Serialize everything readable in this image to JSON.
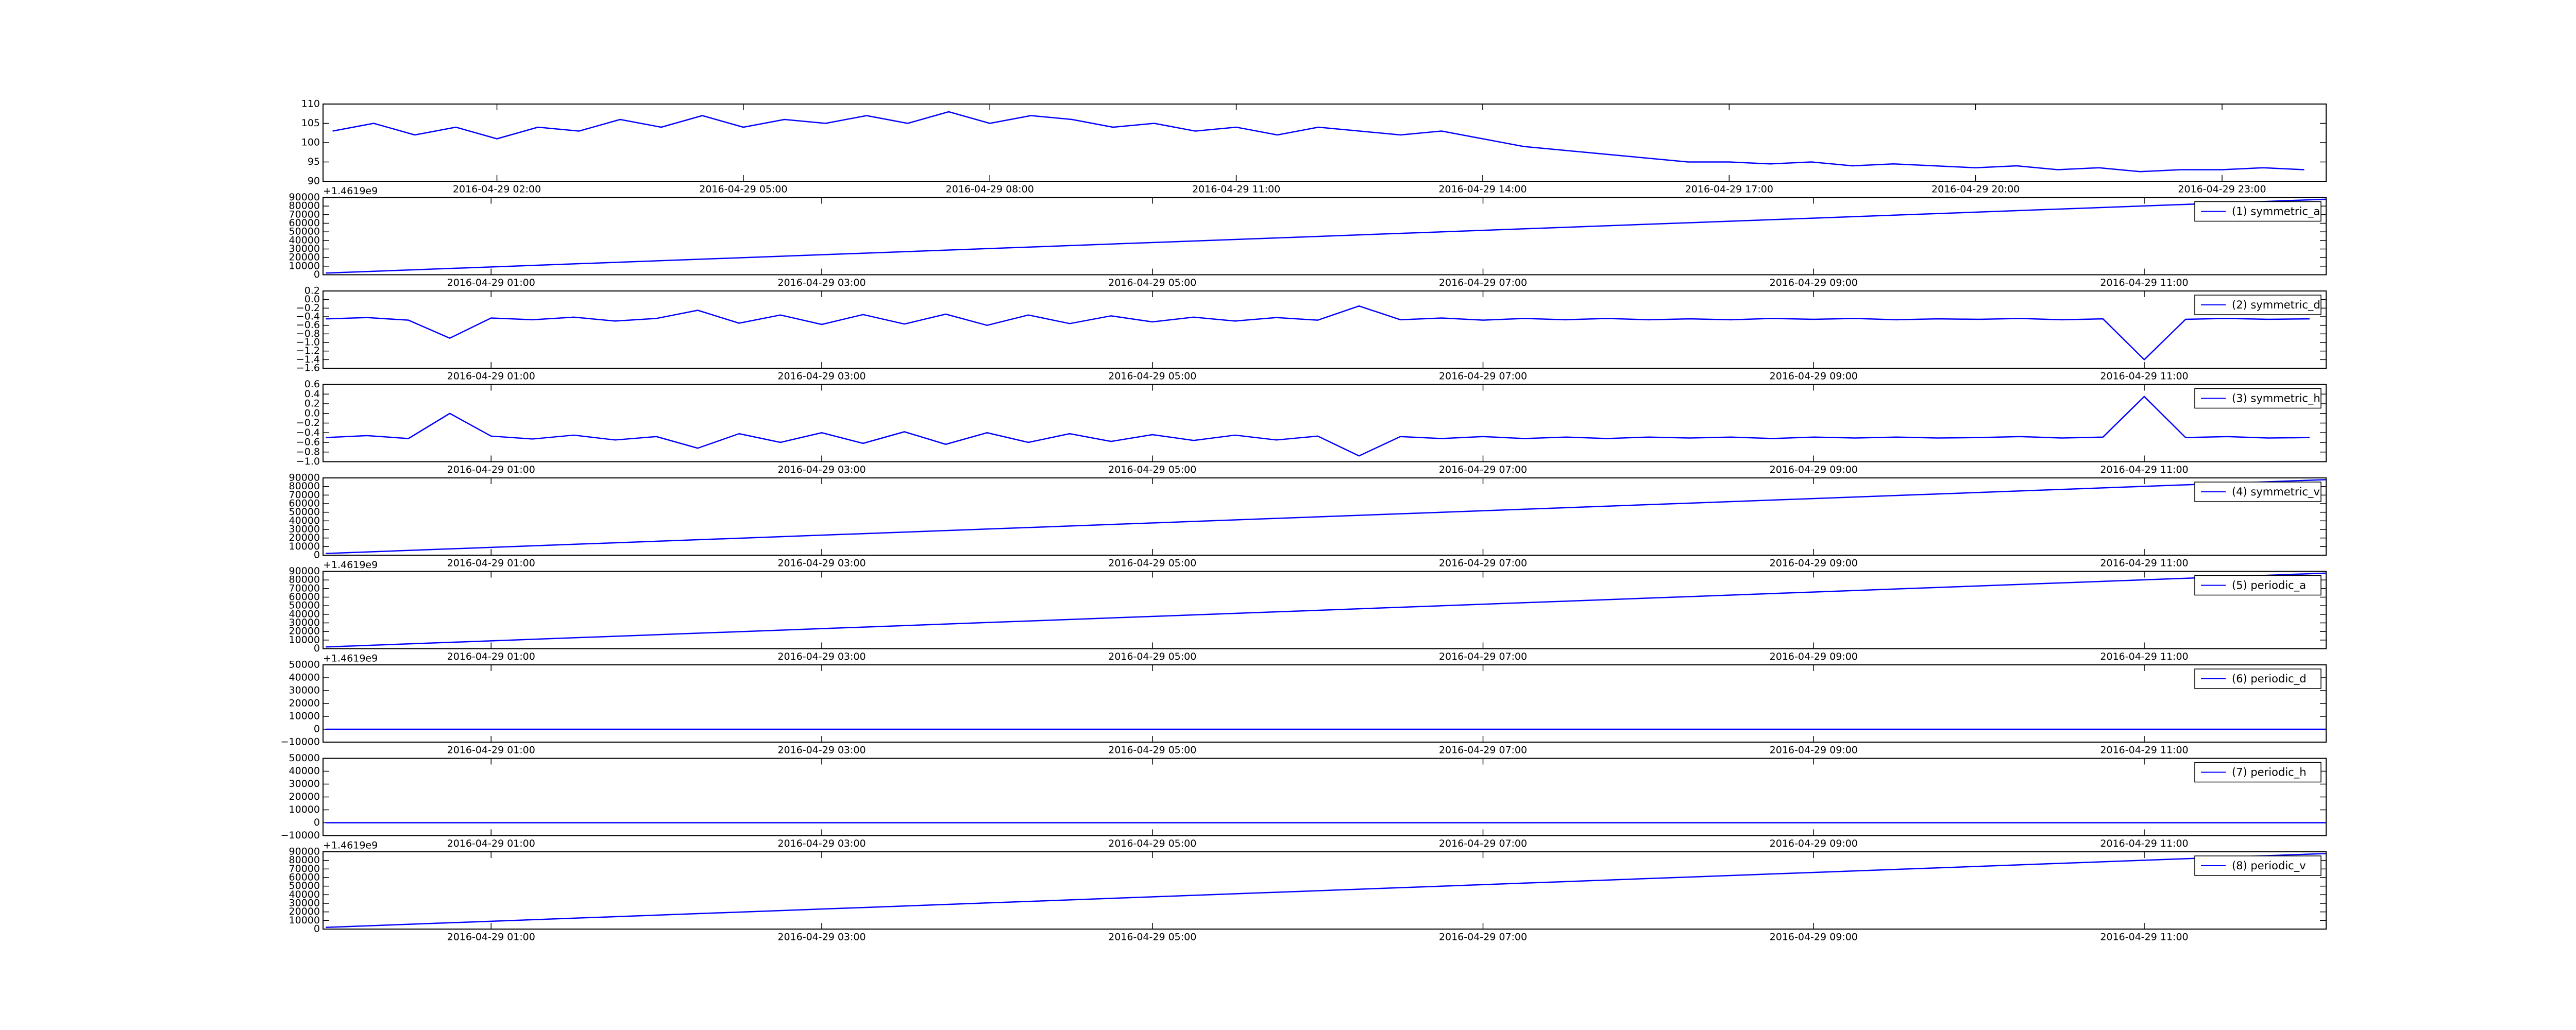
{
  "chart_data": [
    {
      "type": "line",
      "x": [
        "2016-04-29 00:00",
        "2016-04-29 00:30",
        "2016-04-29 01:00",
        "2016-04-29 01:30",
        "2016-04-29 02:00",
        "2016-04-29 02:30",
        "2016-04-29 03:00",
        "2016-04-29 03:30",
        "2016-04-29 04:00",
        "2016-04-29 04:30",
        "2016-04-29 05:00",
        "2016-04-29 05:30",
        "2016-04-29 06:00",
        "2016-04-29 06:30",
        "2016-04-29 07:00",
        "2016-04-29 07:30",
        "2016-04-29 08:00",
        "2016-04-29 08:30",
        "2016-04-29 09:00",
        "2016-04-29 09:30",
        "2016-04-29 10:00",
        "2016-04-29 10:30",
        "2016-04-29 11:00",
        "2016-04-29 11:30",
        "2016-04-29 12:00",
        "2016-04-29 12:30",
        "2016-04-29 13:00",
        "2016-04-29 13:30",
        "2016-04-29 14:00",
        "2016-04-29 14:30",
        "2016-04-29 15:00",
        "2016-04-29 15:30",
        "2016-04-29 16:00",
        "2016-04-29 16:30",
        "2016-04-29 17:00",
        "2016-04-29 17:30",
        "2016-04-29 18:00",
        "2016-04-29 18:30",
        "2016-04-29 19:00",
        "2016-04-29 19:30",
        "2016-04-29 20:00",
        "2016-04-29 20:30",
        "2016-04-29 21:00",
        "2016-04-29 21:30",
        "2016-04-29 22:00",
        "2016-04-29 22:30",
        "2016-04-29 23:00",
        "2016-04-29 23:30",
        "2016-04-30 00:00"
      ],
      "series": [
        {
          "color": "#0000ff",
          "values": [
            103,
            105,
            102,
            104,
            101,
            104,
            103,
            106,
            104,
            107,
            104,
            106,
            105,
            107,
            105,
            108,
            105,
            107,
            106,
            104,
            105,
            103,
            104,
            102,
            104,
            103,
            102,
            103,
            101,
            99,
            98,
            97,
            96,
            95,
            95,
            94.5,
            95,
            94,
            94.5,
            94,
            93.5,
            94,
            93,
            93.5,
            92.5,
            93,
            93,
            93.5,
            93
          ]
        }
      ],
      "xlim": [
        "2016-04-28 23:53",
        "2016-04-30 00:16"
      ],
      "xticks": [
        "2016-04-29 02:00",
        "2016-04-29 05:00",
        "2016-04-29 08:00",
        "2016-04-29 11:00",
        "2016-04-29 14:00",
        "2016-04-29 17:00",
        "2016-04-29 20:00",
        "2016-04-29 23:00"
      ],
      "ylim": [
        90,
        110
      ],
      "yticks": [
        90,
        95,
        100,
        105,
        110
      ]
    },
    {
      "type": "line",
      "offset_text": "+1.4619e9",
      "legend": "upper right",
      "x": [
        "2016-04-29 00:00",
        "2016-04-29 12:06"
      ],
      "series": [
        {
          "name": "(1) symmetric_a",
          "color": "#0000ff",
          "values": [
            2000,
            88000
          ]
        }
      ],
      "xlim": [
        "2016-04-28 23:59",
        "2016-04-29 12:06"
      ],
      "xticks": [
        "2016-04-29 01:00",
        "2016-04-29 03:00",
        "2016-04-29 05:00",
        "2016-04-29 07:00",
        "2016-04-29 09:00",
        "2016-04-29 11:00"
      ],
      "ylim": [
        0,
        90000
      ],
      "yticks": [
        0,
        10000,
        20000,
        30000,
        40000,
        50000,
        60000,
        70000,
        80000,
        90000
      ]
    },
    {
      "type": "line",
      "legend": "upper right",
      "x": [
        "2016-04-29 00:00",
        "2016-04-29 00:15",
        "2016-04-29 00:30",
        "2016-04-29 00:45",
        "2016-04-29 01:00",
        "2016-04-29 01:15",
        "2016-04-29 01:30",
        "2016-04-29 01:45",
        "2016-04-29 02:00",
        "2016-04-29 02:15",
        "2016-04-29 02:30",
        "2016-04-29 02:45",
        "2016-04-29 03:00",
        "2016-04-29 03:15",
        "2016-04-29 03:30",
        "2016-04-29 03:45",
        "2016-04-29 04:00",
        "2016-04-29 04:15",
        "2016-04-29 04:30",
        "2016-04-29 04:45",
        "2016-04-29 05:00",
        "2016-04-29 05:15",
        "2016-04-29 05:30",
        "2016-04-29 05:45",
        "2016-04-29 06:00",
        "2016-04-29 06:15",
        "2016-04-29 06:30",
        "2016-04-29 06:45",
        "2016-04-29 07:00",
        "2016-04-29 07:15",
        "2016-04-29 07:30",
        "2016-04-29 07:45",
        "2016-04-29 08:00",
        "2016-04-29 08:15",
        "2016-04-29 08:30",
        "2016-04-29 08:45",
        "2016-04-29 09:00",
        "2016-04-29 09:15",
        "2016-04-29 09:30",
        "2016-04-29 09:45",
        "2016-04-29 10:00",
        "2016-04-29 10:15",
        "2016-04-29 10:30",
        "2016-04-29 10:45",
        "2016-04-29 11:00",
        "2016-04-29 11:15",
        "2016-04-29 11:30",
        "2016-04-29 11:45",
        "2016-04-29 12:00"
      ],
      "series": [
        {
          "name": "(2) symmetric_d",
          "color": "#0000ff",
          "values": [
            -0.45,
            -0.42,
            -0.48,
            -0.9,
            -0.43,
            -0.47,
            -0.41,
            -0.5,
            -0.44,
            -0.25,
            -0.55,
            -0.36,
            -0.58,
            -0.35,
            -0.57,
            -0.34,
            -0.6,
            -0.36,
            -0.56,
            -0.38,
            -0.52,
            -0.41,
            -0.5,
            -0.42,
            -0.48,
            -0.15,
            -0.47,
            -0.43,
            -0.48,
            -0.44,
            -0.47,
            -0.44,
            -0.47,
            -0.45,
            -0.47,
            -0.44,
            -0.46,
            -0.44,
            -0.47,
            -0.45,
            -0.46,
            -0.44,
            -0.47,
            -0.45,
            -1.4,
            -0.46,
            -0.44,
            -0.46,
            -0.45
          ]
        }
      ],
      "xlim": [
        "2016-04-28 23:59",
        "2016-04-29 12:06"
      ],
      "xticks": [
        "2016-04-29 01:00",
        "2016-04-29 03:00",
        "2016-04-29 05:00",
        "2016-04-29 07:00",
        "2016-04-29 09:00",
        "2016-04-29 11:00"
      ],
      "ylim": [
        -1.6,
        0.2
      ],
      "yticks": [
        {
          "value": -1.6,
          "label": "−1.6"
        },
        {
          "value": -1.4,
          "label": "−1.4"
        },
        {
          "value": -1.2,
          "label": "−1.2"
        },
        {
          "value": -1.0,
          "label": "−1.0"
        },
        {
          "value": -0.8,
          "label": "−0.8"
        },
        {
          "value": -0.6,
          "label": "−0.6"
        },
        {
          "value": -0.4,
          "label": "−0.4"
        },
        {
          "value": -0.2,
          "label": "−0.2"
        },
        {
          "value": 0,
          "label": "0.0"
        },
        0.2
      ]
    },
    {
      "type": "line",
      "legend": "upper right",
      "x": [
        "2016-04-29 00:00",
        "2016-04-29 00:15",
        "2016-04-29 00:30",
        "2016-04-29 00:45",
        "2016-04-29 01:00",
        "2016-04-29 01:15",
        "2016-04-29 01:30",
        "2016-04-29 01:45",
        "2016-04-29 02:00",
        "2016-04-29 02:15",
        "2016-04-29 02:30",
        "2016-04-29 02:45",
        "2016-04-29 03:00",
        "2016-04-29 03:15",
        "2016-04-29 03:30",
        "2016-04-29 03:45",
        "2016-04-29 04:00",
        "2016-04-29 04:15",
        "2016-04-29 04:30",
        "2016-04-29 04:45",
        "2016-04-29 05:00",
        "2016-04-29 05:15",
        "2016-04-29 05:30",
        "2016-04-29 05:45",
        "2016-04-29 06:00",
        "2016-04-29 06:15",
        "2016-04-29 06:30",
        "2016-04-29 06:45",
        "2016-04-29 07:00",
        "2016-04-29 07:15",
        "2016-04-29 07:30",
        "2016-04-29 07:45",
        "2016-04-29 08:00",
        "2016-04-29 08:15",
        "2016-04-29 08:30",
        "2016-04-29 08:45",
        "2016-04-29 09:00",
        "2016-04-29 09:15",
        "2016-04-29 09:30",
        "2016-04-29 09:45",
        "2016-04-29 10:00",
        "2016-04-29 10:15",
        "2016-04-29 10:30",
        "2016-04-29 10:45",
        "2016-04-29 11:00",
        "2016-04-29 11:15",
        "2016-04-29 11:30",
        "2016-04-29 11:45",
        "2016-04-29 12:00"
      ],
      "series": [
        {
          "name": "(3) symmetric_h",
          "color": "#0000ff",
          "values": [
            -0.5,
            -0.46,
            -0.52,
            0.0,
            -0.47,
            -0.53,
            -0.45,
            -0.55,
            -0.48,
            -0.72,
            -0.42,
            -0.6,
            -0.4,
            -0.62,
            -0.38,
            -0.64,
            -0.4,
            -0.6,
            -0.42,
            -0.58,
            -0.44,
            -0.56,
            -0.45,
            -0.55,
            -0.47,
            -0.88,
            -0.48,
            -0.52,
            -0.48,
            -0.52,
            -0.49,
            -0.52,
            -0.49,
            -0.51,
            -0.49,
            -0.52,
            -0.49,
            -0.51,
            -0.49,
            -0.51,
            -0.5,
            -0.48,
            -0.51,
            -0.49,
            0.35,
            -0.5,
            -0.48,
            -0.51,
            -0.5
          ]
        }
      ],
      "xlim": [
        "2016-04-28 23:59",
        "2016-04-29 12:06"
      ],
      "xticks": [
        "2016-04-29 01:00",
        "2016-04-29 03:00",
        "2016-04-29 05:00",
        "2016-04-29 07:00",
        "2016-04-29 09:00",
        "2016-04-29 11:00"
      ],
      "ylim": [
        -1.0,
        0.6
      ],
      "yticks": [
        {
          "value": -1.0,
          "label": "−1.0"
        },
        {
          "value": -0.8,
          "label": "−0.8"
        },
        {
          "value": -0.6,
          "label": "−0.6"
        },
        {
          "value": -0.4,
          "label": "−0.4"
        },
        {
          "value": -0.2,
          "label": "−0.2"
        },
        {
          "value": 0,
          "label": "0.0"
        },
        0.2,
        0.4,
        0.6
      ]
    },
    {
      "type": "line",
      "legend": "upper right",
      "x": [
        "2016-04-29 00:00",
        "2016-04-29 12:06"
      ],
      "series": [
        {
          "name": "(4) symmetric_v",
          "color": "#0000ff",
          "values": [
            2000,
            88000
          ]
        }
      ],
      "xlim": [
        "2016-04-28 23:59",
        "2016-04-29 12:06"
      ],
      "xticks": [
        "2016-04-29 01:00",
        "2016-04-29 03:00",
        "2016-04-29 05:00",
        "2016-04-29 07:00",
        "2016-04-29 09:00",
        "2016-04-29 11:00"
      ],
      "ylim": [
        0,
        90000
      ],
      "yticks": [
        0,
        10000,
        20000,
        30000,
        40000,
        50000,
        60000,
        70000,
        80000,
        90000
      ]
    },
    {
      "type": "line",
      "offset_text": "+1.4619e9",
      "legend": "upper right",
      "x": [
        "2016-04-29 00:00",
        "2016-04-29 12:06"
      ],
      "series": [
        {
          "name": "(5) periodic_a",
          "color": "#0000ff",
          "values": [
            2000,
            88000
          ]
        }
      ],
      "xlim": [
        "2016-04-28 23:59",
        "2016-04-29 12:06"
      ],
      "xticks": [
        "2016-04-29 01:00",
        "2016-04-29 03:00",
        "2016-04-29 05:00",
        "2016-04-29 07:00",
        "2016-04-29 09:00",
        "2016-04-29 11:00"
      ],
      "ylim": [
        0,
        90000
      ],
      "yticks": [
        0,
        10000,
        20000,
        30000,
        40000,
        50000,
        60000,
        70000,
        80000,
        90000
      ]
    },
    {
      "type": "line",
      "offset_text": "+1.4619e9",
      "legend": "upper right",
      "x": [
        "2016-04-29 00:00",
        "2016-04-29 12:06"
      ],
      "series": [
        {
          "name": "(6) periodic_d",
          "color": "#0000ff",
          "values": [
            0,
            0
          ]
        }
      ],
      "xlim": [
        "2016-04-28 23:59",
        "2016-04-29 12:06"
      ],
      "xticks": [
        "2016-04-29 01:00",
        "2016-04-29 03:00",
        "2016-04-29 05:00",
        "2016-04-29 07:00",
        "2016-04-29 09:00",
        "2016-04-29 11:00"
      ],
      "ylim": [
        -10000,
        50000
      ],
      "yticks": [
        {
          "value": -10000,
          "label": "−10000"
        },
        0,
        10000,
        20000,
        30000,
        40000,
        50000
      ]
    },
    {
      "type": "line",
      "legend": "upper right",
      "x": [
        "2016-04-29 00:00",
        "2016-04-29 12:06"
      ],
      "series": [
        {
          "name": "(7) periodic_h",
          "color": "#0000ff",
          "values": [
            0,
            0
          ]
        }
      ],
      "xlim": [
        "2016-04-28 23:59",
        "2016-04-29 12:06"
      ],
      "xticks": [
        "2016-04-29 01:00",
        "2016-04-29 03:00",
        "2016-04-29 05:00",
        "2016-04-29 07:00",
        "2016-04-29 09:00",
        "2016-04-29 11:00"
      ],
      "ylim": [
        -10000,
        50000
      ],
      "yticks": [
        {
          "value": -10000,
          "label": "−10000"
        },
        0,
        10000,
        20000,
        30000,
        40000,
        50000
      ]
    },
    {
      "type": "line",
      "offset_text": "+1.4619e9",
      "legend": "upper right",
      "x": [
        "2016-04-29 00:00",
        "2016-04-29 12:06"
      ],
      "series": [
        {
          "name": "(8) periodic_v",
          "color": "#0000ff",
          "values": [
            2000,
            88000
          ]
        }
      ],
      "xlim": [
        "2016-04-28 23:59",
        "2016-04-29 12:06"
      ],
      "xticks": [
        "2016-04-29 01:00",
        "2016-04-29 03:00",
        "2016-04-29 05:00",
        "2016-04-29 07:00",
        "2016-04-29 09:00",
        "2016-04-29 11:00"
      ],
      "ylim": [
        0,
        90000
      ],
      "yticks": [
        0,
        10000,
        20000,
        30000,
        40000,
        50000,
        60000,
        70000,
        80000,
        90000
      ]
    }
  ]
}
